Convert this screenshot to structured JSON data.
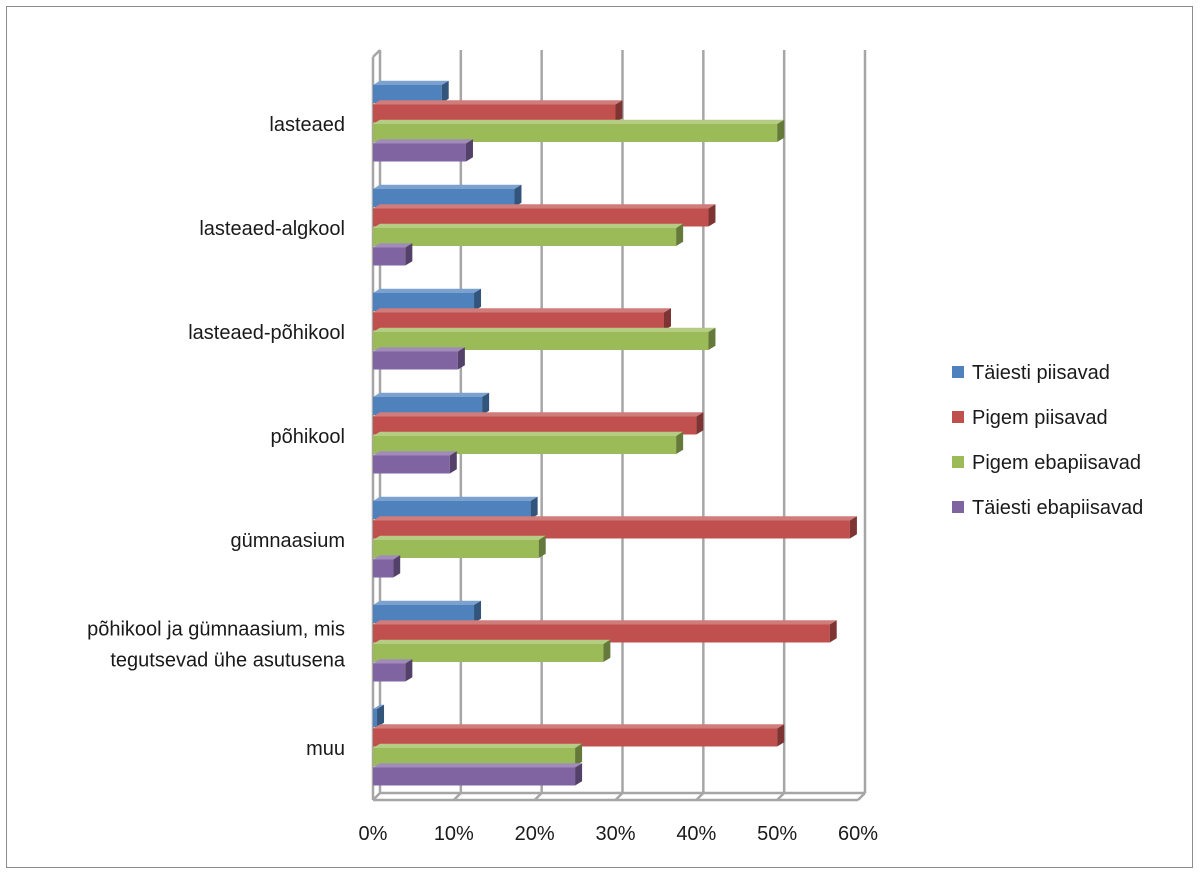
{
  "chart_data": {
    "type": "bar",
    "orientation": "horizontal",
    "title": "",
    "xlabel": "",
    "ylabel": "",
    "xlim": [
      0,
      60
    ],
    "x_ticks": [
      "0%",
      "10%",
      "20%",
      "30%",
      "40%",
      "50%",
      "60%"
    ],
    "grid": true,
    "legend_position": "right",
    "categories": [
      "lasteaed",
      "lasteaed-algkool",
      "lasteaed-põhikool",
      "põhikool",
      "gümnaasium",
      "põhikool ja gümnaasium, mis tegutsevad ühe asutusena",
      "muu"
    ],
    "category_label_lines": [
      [
        "lasteaed"
      ],
      [
        "lasteaed-algkool"
      ],
      [
        "lasteaed-põhikool"
      ],
      [
        "põhikool"
      ],
      [
        "gümnaasium"
      ],
      [
        "põhikool ja gümnaasium, mis",
        "tegutsevad ühe asutusena"
      ],
      [
        "muu"
      ]
    ],
    "series": [
      {
        "name": "Täiesti piisavad",
        "color": "#4F81BD",
        "values": [
          8.5,
          17.5,
          12.5,
          13.5,
          19.5,
          12.5,
          0.5
        ]
      },
      {
        "name": "Pigem piisavad",
        "color": "#C0504D",
        "values": [
          30,
          41.5,
          36,
          40,
          59,
          56.5,
          50
        ]
      },
      {
        "name": "Pigem ebapiisavad",
        "color": "#9BBB59",
        "values": [
          50,
          37.5,
          41.5,
          37.5,
          20.5,
          28.5,
          25
        ]
      },
      {
        "name": "Täiesti ebapiisavad",
        "color": "#8064A2",
        "values": [
          11.5,
          4,
          10.5,
          9.5,
          2.5,
          4,
          25
        ]
      }
    ]
  }
}
